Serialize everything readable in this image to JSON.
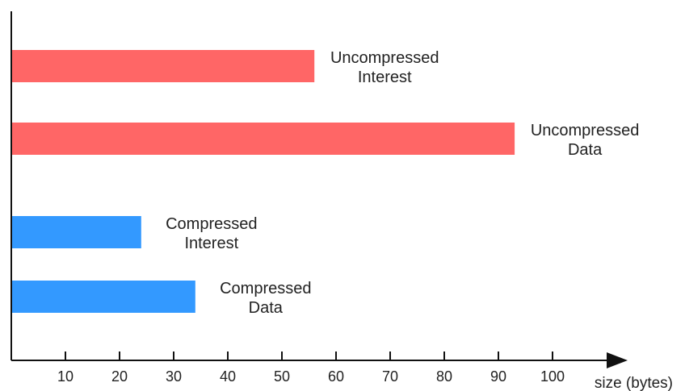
{
  "chart_data": {
    "type": "bar",
    "orientation": "horizontal",
    "categories": [
      "Uncompressed Interest",
      "Uncompressed Data",
      "Compressed Interest",
      "Compressed Data"
    ],
    "category_label_lines": [
      [
        "Uncompressed",
        "Interest"
      ],
      [
        "Uncompressed",
        "Data"
      ],
      [
        "Compressed",
        "Interest"
      ],
      [
        "Compressed",
        "Data"
      ]
    ],
    "values": [
      56,
      93,
      24,
      34
    ],
    "bar_colors": [
      "#ff6666",
      "#ff6666",
      "#3399ff",
      "#3399ff"
    ],
    "xlabel": "size (bytes)",
    "xticks": [
      10,
      20,
      30,
      40,
      50,
      60,
      70,
      80,
      90,
      100
    ],
    "xlim": [
      0,
      113
    ],
    "grid": false,
    "legend": "none",
    "axis_color": "#111111"
  }
}
